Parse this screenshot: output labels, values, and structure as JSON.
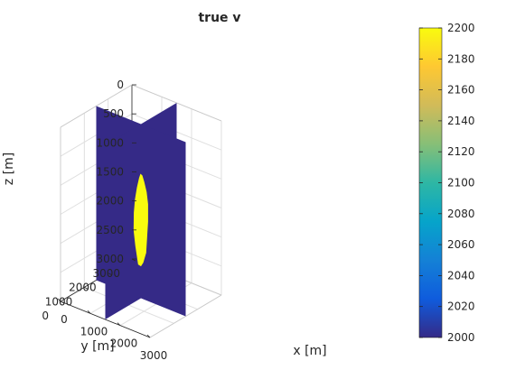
{
  "chart_data": {
    "type": "3d-slice",
    "title": "true v",
    "xlabel": "x [m]",
    "ylabel": "y [m]",
    "zlabel": "z [m]",
    "x_ticks": [
      "0",
      "1000",
      "2000",
      "3000"
    ],
    "y_ticks": [
      "0",
      "1000",
      "2000",
      "3000"
    ],
    "z_ticks": [
      "0",
      "500",
      "1000",
      "1500",
      "2000",
      "2500",
      "3000"
    ],
    "xlim": [
      0,
      3000
    ],
    "ylim": [
      0,
      3000
    ],
    "zlim": [
      0,
      3000
    ],
    "z_direction": "reversed",
    "grid": true,
    "slices": [
      {
        "plane": "x",
        "value": 1500
      },
      {
        "plane": "y",
        "value": 1500
      }
    ],
    "background_value": 2000,
    "anomaly": {
      "value": 2200,
      "shape": "rounded, pointed top",
      "center_x": 1500,
      "center_z": 1700,
      "z_range": [
        850,
        2450
      ]
    },
    "colorbar": {
      "min": 2000,
      "max": 2200,
      "ticks": [
        "2000",
        "2020",
        "2040",
        "2060",
        "2080",
        "2100",
        "2120",
        "2140",
        "2160",
        "2180",
        "2200"
      ],
      "colormap": "parula",
      "colors": [
        "#352a87",
        "#0f5cdd",
        "#1481d6",
        "#06a4ca",
        "#2eb7a4",
        "#87bf77",
        "#d1bb59",
        "#fec832",
        "#f9fb0e"
      ]
    },
    "colors": {
      "background_slice": "#352a87",
      "anomaly": "#f9fb0e"
    }
  }
}
